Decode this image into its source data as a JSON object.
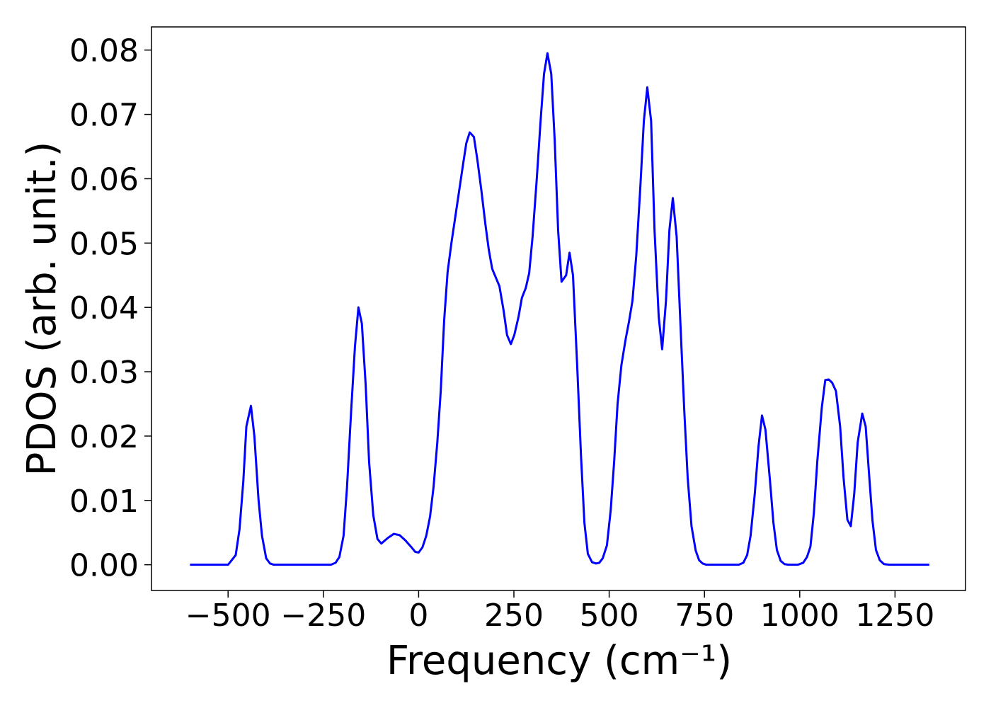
{
  "chart_data": {
    "type": "line",
    "xlabel": "Frequency (cm⁻¹)",
    "ylabel": "PDOS (arb. unit.)",
    "x": [
      -600,
      -500,
      -480,
      -470,
      -460,
      -452,
      -440,
      -431,
      -420,
      -411,
      -400,
      -390,
      -380,
      -230,
      -218,
      -208,
      -197,
      -188,
      -177,
      -167,
      -158,
      -149,
      -139,
      -130,
      -119,
      -108,
      -98,
      -80,
      -65,
      -50,
      -35,
      -20,
      -9,
      0,
      10,
      20,
      30,
      39,
      49,
      58,
      67,
      76,
      86,
      96,
      106,
      116,
      125,
      134,
      145,
      154,
      165,
      175,
      184,
      193,
      212,
      223,
      232,
      242,
      251,
      262,
      271,
      281,
      290,
      299,
      310,
      320,
      329,
      338,
      348,
      357,
      366,
      375,
      387,
      396,
      405,
      416,
      426,
      435,
      444,
      455,
      465,
      474,
      483,
      494,
      504,
      513,
      522,
      532,
      543,
      552,
      561,
      571,
      582,
      591,
      600,
      610,
      619,
      630,
      639,
      649,
      658,
      667,
      677,
      688,
      697,
      706,
      716,
      727,
      736,
      745,
      755,
      840,
      852,
      862,
      871,
      882,
      892,
      901,
      910,
      922,
      931,
      940,
      950,
      960,
      970,
      995,
      1009,
      1019,
      1028,
      1037,
      1046,
      1058,
      1067,
      1076,
      1085,
      1095,
      1106,
      1115,
      1125,
      1134,
      1143,
      1152,
      1164,
      1173,
      1182,
      1191,
      1200,
      1210,
      1221,
      1235,
      1340
    ],
    "series": [
      {
        "color": "#0000ff",
        "values": [
          0,
          0,
          0.0015,
          0.0055,
          0.013,
          0.0215,
          0.0247,
          0.02,
          0.01,
          0.0045,
          0.001,
          0.0002,
          0,
          0,
          0.0003,
          0.0012,
          0.0045,
          0.012,
          0.024,
          0.034,
          0.04,
          0.0375,
          0.028,
          0.016,
          0.0077,
          0.004,
          0.0033,
          0.0042,
          0.0048,
          0.0046,
          0.0038,
          0.0028,
          0.002,
          0.0019,
          0.0027,
          0.0045,
          0.0075,
          0.012,
          0.019,
          0.027,
          0.038,
          0.0455,
          0.05,
          0.054,
          0.058,
          0.062,
          0.0655,
          0.0672,
          0.0665,
          0.063,
          0.058,
          0.053,
          0.049,
          0.046,
          0.0433,
          0.0395,
          0.0357,
          0.0343,
          0.0357,
          0.0385,
          0.0415,
          0.043,
          0.0453,
          0.051,
          0.06,
          0.069,
          0.0763,
          0.0795,
          0.0763,
          0.066,
          0.052,
          0.044,
          0.045,
          0.0485,
          0.045,
          0.031,
          0.017,
          0.0065,
          0.0017,
          0.0004,
          0.0002,
          0.0003,
          0.001,
          0.003,
          0.0085,
          0.016,
          0.025,
          0.031,
          0.035,
          0.0378,
          0.041,
          0.048,
          0.059,
          0.069,
          0.0742,
          0.069,
          0.052,
          0.0385,
          0.0335,
          0.041,
          0.052,
          0.057,
          0.051,
          0.036,
          0.024,
          0.0135,
          0.006,
          0.0022,
          0.0007,
          0.0002,
          0,
          0,
          0.0003,
          0.0015,
          0.0045,
          0.011,
          0.0185,
          0.0232,
          0.021,
          0.013,
          0.0065,
          0.0023,
          0.0006,
          0.0001,
          0,
          0,
          0.0003,
          0.0012,
          0.0028,
          0.008,
          0.016,
          0.0245,
          0.0287,
          0.0288,
          0.0283,
          0.027,
          0.0215,
          0.0135,
          0.007,
          0.006,
          0.011,
          0.019,
          0.0235,
          0.0215,
          0.014,
          0.0068,
          0.0023,
          0.0007,
          0.0001,
          0,
          0
        ]
      }
    ],
    "xlim": [
      -701,
      1435
    ],
    "ylim": [
      -0.004,
      0.0836
    ],
    "xticks": [
      {
        "value": -500,
        "label": "−500"
      },
      {
        "value": -250,
        "label": "−250"
      },
      0,
      250,
      500,
      750,
      1000,
      1250
    ],
    "yticks": [
      {
        "value": 0,
        "label": "0.00"
      },
      {
        "value": 0.01,
        "label": "0.01"
      },
      {
        "value": 0.02,
        "label": "0.02"
      },
      {
        "value": 0.03,
        "label": "0.03"
      },
      {
        "value": 0.04,
        "label": "0.04"
      },
      {
        "value": 0.05,
        "label": "0.05"
      },
      {
        "value": 0.06,
        "label": "0.06"
      },
      {
        "value": 0.07,
        "label": "0.07"
      },
      {
        "value": 0.08,
        "label": "0.08"
      }
    ],
    "grid": false
  }
}
